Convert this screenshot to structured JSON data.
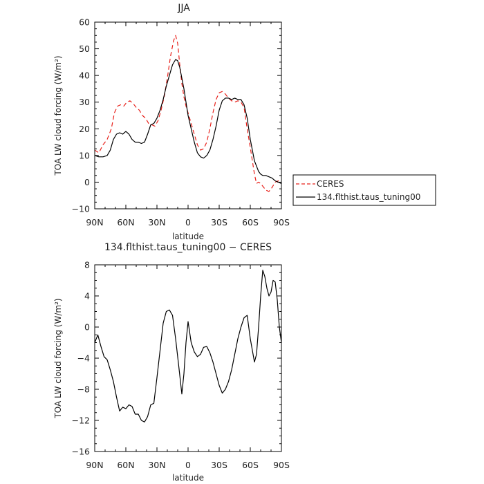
{
  "chart_data": [
    {
      "type": "line",
      "title": "JJA",
      "xlabel": "latitude",
      "ylabel": "TOA LW cloud forcing (W/m²)",
      "xlim": [
        90,
        -90
      ],
      "ylim": [
        -10,
        60
      ],
      "x_ticks": [
        90,
        60,
        30,
        0,
        -30,
        -60,
        -90
      ],
      "x_tick_labels": [
        "90N",
        "60N",
        "30N",
        "0",
        "30S",
        "60S",
        "90S"
      ],
      "y_ticks": [
        -10,
        0,
        10,
        20,
        30,
        40,
        50,
        60
      ],
      "y_tick_labels": [
        "−10",
        "0",
        "10",
        "20",
        "30",
        "40",
        "50",
        "60"
      ],
      "legend": "right",
      "series": [
        {
          "name": "CERES",
          "color": "#e8201a",
          "dash": "dashed",
          "x": [
            90,
            86,
            82,
            78,
            74,
            71,
            68,
            65,
            62,
            59,
            56,
            53,
            50,
            47,
            44,
            41,
            38,
            35,
            32,
            29,
            26,
            23,
            20,
            17,
            14,
            12,
            10,
            8,
            6,
            4,
            2,
            0,
            -3,
            -6,
            -9,
            -12,
            -15,
            -18,
            -21,
            -24,
            -27,
            -30,
            -33,
            -36,
            -39,
            -42,
            -45,
            -48,
            -51,
            -54,
            -57,
            -60,
            -62,
            -64,
            -66,
            -68,
            -70,
            -72,
            -75,
            -78,
            -81,
            -84,
            -87,
            -90
          ],
          "y": [
            12,
            11,
            14,
            16,
            20,
            26,
            28.5,
            29,
            28.5,
            30,
            30.5,
            29.5,
            28,
            27,
            25,
            24,
            22,
            21.5,
            21,
            23,
            27,
            32,
            39,
            47,
            53,
            55,
            52,
            44,
            37,
            32,
            28.5,
            26,
            22,
            18,
            14,
            12,
            12.5,
            15,
            20,
            26,
            31,
            33.5,
            34,
            33,
            31.5,
            30.5,
            30,
            30.5,
            30,
            28,
            20,
            13,
            8,
            3,
            -0.5,
            0,
            -0.5,
            -1.5,
            -3,
            -3.5,
            -2,
            0,
            0.5,
            0
          ]
        },
        {
          "name": "134.flthist.taus_tuning00",
          "color": "#000000",
          "dash": "solid",
          "x": [
            90,
            86,
            82,
            78,
            75,
            72,
            69,
            66,
            63,
            60,
            57,
            54,
            51,
            48,
            45,
            42,
            39,
            36,
            33,
            30,
            27,
            24,
            21,
            18,
            15,
            12,
            10,
            8,
            6,
            4,
            2,
            0,
            -3,
            -6,
            -9,
            -12,
            -15,
            -18,
            -21,
            -24,
            -27,
            -30,
            -33,
            -36,
            -39,
            -42,
            -45,
            -48,
            -51,
            -54,
            -57,
            -60,
            -62,
            -64,
            -66,
            -68,
            -70,
            -72,
            -75,
            -78,
            -81,
            -84,
            -87,
            -90
          ],
          "y": [
            10,
            9.5,
            9.5,
            10,
            12,
            16,
            18,
            18.5,
            18,
            19,
            18,
            16,
            15,
            15,
            14.5,
            15,
            18,
            21.5,
            22,
            24,
            27,
            31,
            36,
            40,
            44,
            46,
            45.5,
            43,
            39,
            35,
            30,
            25,
            20,
            15,
            11,
            9.5,
            9,
            10,
            12,
            16,
            21,
            27,
            30.5,
            31.5,
            31.5,
            31,
            31.5,
            31,
            31,
            29,
            24,
            16,
            12,
            8,
            6,
            4,
            3,
            2.5,
            2.5,
            2,
            1.5,
            0.5,
            0,
            -0.5
          ]
        }
      ]
    },
    {
      "type": "line",
      "title": "134.flthist.taus_tuning00 − CERES",
      "xlabel": "latitude",
      "ylabel": "TOA LW cloud forcing (W/m²)",
      "xlim": [
        90,
        -90
      ],
      "ylim": [
        -16,
        8
      ],
      "x_ticks": [
        90,
        60,
        30,
        0,
        -30,
        -60,
        -90
      ],
      "x_tick_labels": [
        "90N",
        "60N",
        "30N",
        "0",
        "30S",
        "60S",
        "90S"
      ],
      "y_ticks": [
        -16,
        -12,
        -8,
        -4,
        0,
        4,
        8
      ],
      "y_tick_labels": [
        "−16",
        "−12",
        "−8",
        "−4",
        "0",
        "4",
        "8"
      ],
      "series": [
        {
          "color": "#000000",
          "dash": "solid",
          "x": [
            90,
            87,
            84,
            81,
            78,
            75,
            72,
            69,
            66,
            63,
            60,
            57,
            54,
            51,
            48,
            45,
            42,
            39,
            36,
            33,
            30,
            27,
            24,
            21,
            18,
            15,
            12,
            9,
            6,
            4,
            2,
            0,
            -3,
            -6,
            -9,
            -12,
            -15,
            -18,
            -21,
            -24,
            -27,
            -30,
            -33,
            -36,
            -39,
            -42,
            -45,
            -48,
            -51,
            -54,
            -57,
            -60,
            -62,
            -64,
            -66,
            -68,
            -70,
            -72,
            -74,
            -76,
            -78,
            -80,
            -82,
            -84,
            -86,
            -88,
            -90
          ],
          "y": [
            -2,
            -1,
            -2.5,
            -3.8,
            -4.2,
            -5.5,
            -7,
            -9,
            -10.8,
            -10.3,
            -10.5,
            -10,
            -10.2,
            -11.2,
            -11.2,
            -12,
            -12.2,
            -11.5,
            -10,
            -9.8,
            -6.5,
            -3,
            0.5,
            2,
            2.2,
            1.5,
            -1.5,
            -5,
            -8.6,
            -6,
            -2,
            0.7,
            -2,
            -3.2,
            -3.8,
            -3.5,
            -2.6,
            -2.5,
            -3.3,
            -4.5,
            -6,
            -7.5,
            -8.5,
            -8,
            -7,
            -5.5,
            -3.5,
            -1.5,
            0,
            1.2,
            1.5,
            -1.5,
            -3,
            -4.5,
            -3.5,
            0,
            4,
            7.3,
            6.5,
            5,
            4,
            4.5,
            6,
            5.8,
            3.5,
            0,
            -2
          ]
        }
      ]
    }
  ]
}
